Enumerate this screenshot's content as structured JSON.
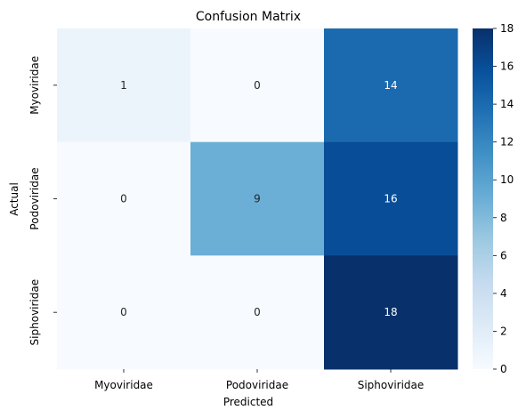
{
  "chart_data": {
    "type": "heatmap",
    "title": "Confusion Matrix",
    "xlabel": "Predicted",
    "ylabel": "Actual",
    "x_categories": [
      "Myoviridae",
      "Podoviridae",
      "Siphoviridae"
    ],
    "y_categories": [
      "Myoviridae",
      "Podoviridae",
      "Siphoviridae"
    ],
    "values": [
      [
        1,
        0,
        14
      ],
      [
        0,
        9,
        16
      ],
      [
        0,
        0,
        18
      ]
    ],
    "colorbar": {
      "min": 0,
      "max": 18,
      "ticks": [
        0,
        2,
        4,
        6,
        8,
        10,
        12,
        14,
        16,
        18
      ],
      "colormap": "Blues"
    }
  }
}
